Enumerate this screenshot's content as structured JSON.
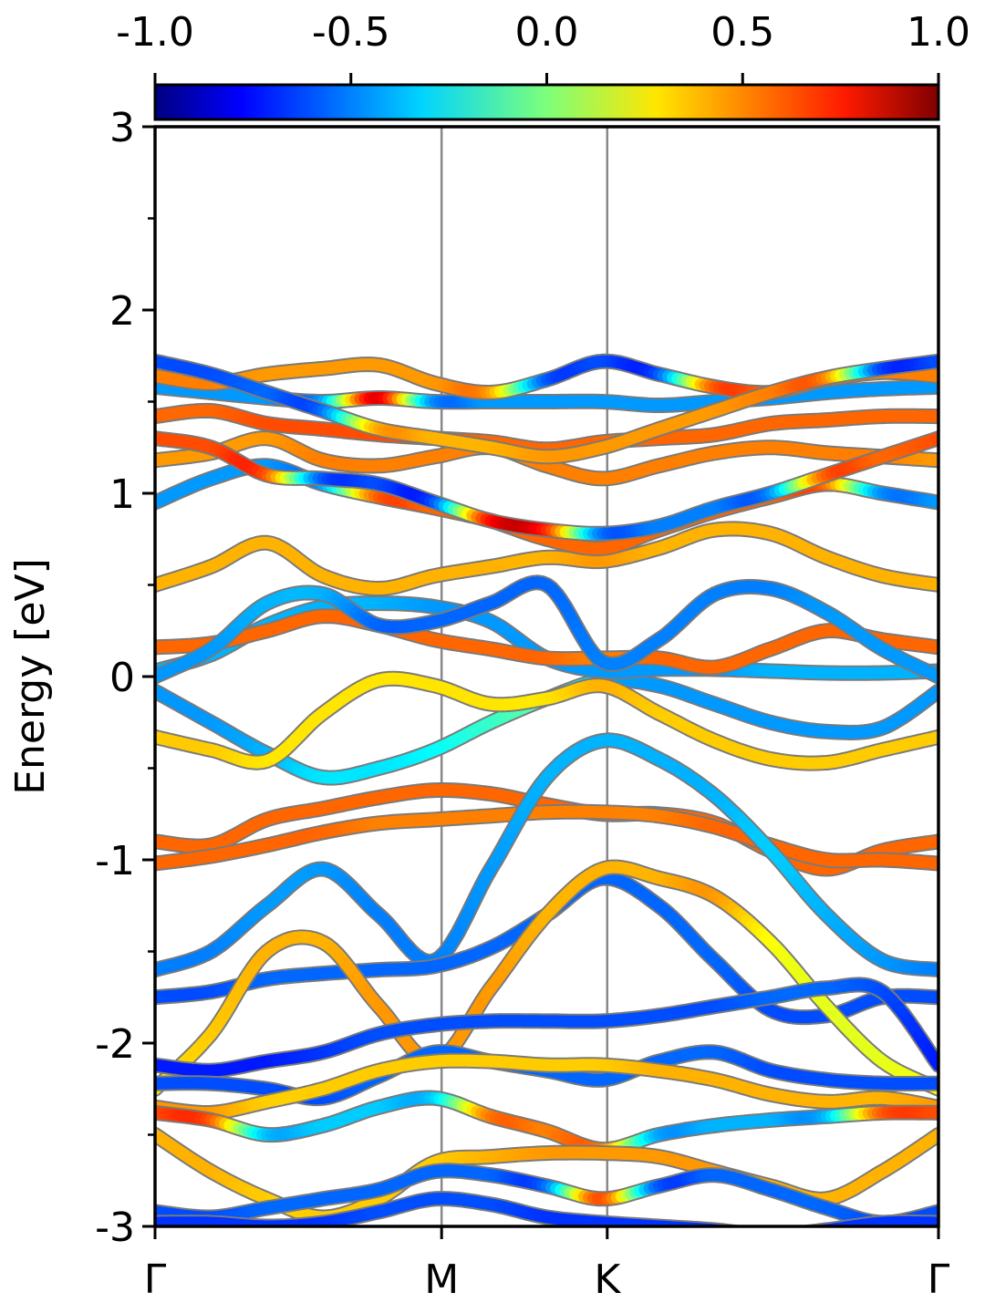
{
  "chart_data": {
    "type": "line",
    "title": "",
    "xlabel": "",
    "ylabel": "Energy [eV]",
    "ylim": [
      -3,
      3
    ],
    "y_ticks_major": [
      -3,
      -2,
      -1,
      0,
      1,
      2,
      3
    ],
    "y_tick_labels": [
      "-3",
      "-2",
      "-1",
      "0",
      "1",
      "2",
      "3"
    ],
    "y_ticks_minor": [
      -2.5,
      -1.5,
      -0.5,
      0.5,
      1.5,
      2.5
    ],
    "xlim": [
      0,
      4.73
    ],
    "k_points": [
      {
        "label": "Γ",
        "x": 0
      },
      {
        "label": "M",
        "x": 1.73
      },
      {
        "label": "K",
        "x": 2.73
      },
      {
        "label": "Γ",
        "x": 4.73
      }
    ],
    "colorbar": {
      "range": [
        -1.0,
        1.0
      ],
      "ticks": [
        -1.0,
        -0.5,
        0.0,
        0.5,
        1.0
      ],
      "tick_labels": [
        "-1.0",
        "-0.5",
        "0.0",
        "0.5",
        "1.0"
      ],
      "colormap": "jet"
    },
    "grid": false,
    "series": [
      {
        "values": [
          -0.08,
          -0.25,
          -0.42,
          -0.55,
          -0.5,
          -0.4,
          -0.25,
          -0.12,
          -0.02,
          -0.05,
          -0.15,
          -0.25,
          -0.3,
          -0.28,
          -0.08
        ],
        "colors": [
          -0.45,
          -0.45,
          -0.4,
          -0.3,
          -0.3,
          -0.25,
          -0.15,
          -0.1,
          -0.4,
          -0.45,
          -0.45,
          -0.45,
          -0.45,
          -0.45,
          -0.45
        ]
      },
      {
        "values": [
          -0.33,
          -0.4,
          -0.46,
          -0.2,
          -0.02,
          -0.05,
          -0.15,
          -0.12,
          -0.05,
          -0.2,
          -0.35,
          -0.45,
          -0.47,
          -0.4,
          -0.33
        ],
        "colors": [
          0.35,
          0.35,
          0.3,
          0.3,
          0.3,
          0.3,
          0.3,
          0.3,
          0.4,
          0.35,
          0.35,
          0.35,
          0.35,
          0.35,
          0.35
        ]
      },
      {
        "values": [
          0.03,
          0.12,
          0.28,
          0.38,
          0.4,
          0.38,
          0.3,
          0.1,
          0.03,
          0.04,
          0.04,
          0.03,
          0.02,
          0.02,
          0.03
        ],
        "colors": [
          -0.4,
          -0.4,
          -0.4,
          -0.4,
          -0.4,
          -0.45,
          -0.45,
          -0.45,
          -0.45,
          -0.45,
          -0.45,
          -0.4,
          -0.4,
          -0.4,
          -0.4
        ]
      },
      {
        "values": [
          0.16,
          0.18,
          0.25,
          0.33,
          0.28,
          0.2,
          0.15,
          0.1,
          0.1,
          0.1,
          0.05,
          0.15,
          0.25,
          0.2,
          0.16
        ],
        "colors": [
          0.55,
          0.55,
          0.55,
          0.55,
          0.55,
          0.55,
          0.55,
          0.55,
          0.5,
          0.55,
          0.55,
          0.55,
          0.55,
          0.55,
          0.55
        ]
      },
      {
        "values": [
          0.0,
          0.15,
          0.4,
          0.45,
          0.28,
          0.3,
          0.4,
          0.5,
          0.08,
          0.2,
          0.45,
          0.48,
          0.35,
          0.15,
          0.0
        ],
        "colors": [
          -0.45,
          -0.45,
          -0.4,
          -0.4,
          -0.55,
          -0.55,
          -0.55,
          -0.55,
          -0.5,
          -0.5,
          -0.5,
          -0.5,
          -0.45,
          -0.45,
          -0.45
        ]
      },
      {
        "values": [
          0.5,
          0.6,
          0.73,
          0.55,
          0.48,
          0.55,
          0.6,
          0.65,
          0.63,
          0.7,
          0.8,
          0.78,
          0.65,
          0.55,
          0.5
        ],
        "colors": [
          0.4,
          0.4,
          0.4,
          0.4,
          0.4,
          0.4,
          0.4,
          0.4,
          0.45,
          0.4,
          0.4,
          0.4,
          0.4,
          0.4,
          0.4
        ]
      },
      {
        "values": [
          0.95,
          1.08,
          1.15,
          1.05,
          0.98,
          0.92,
          0.85,
          0.75,
          0.7,
          0.8,
          0.9,
          0.98,
          1.05,
          1.0,
          0.95
        ],
        "colors": [
          -0.45,
          -0.45,
          -0.45,
          -0.45,
          0.55,
          0.55,
          0.55,
          0.55,
          0.55,
          0.55,
          0.55,
          0.55,
          0.55,
          -0.45,
          -0.45
        ]
      },
      {
        "values": [
          1.18,
          1.22,
          1.3,
          1.18,
          1.15,
          1.2,
          1.25,
          1.15,
          1.08,
          1.15,
          1.22,
          1.25,
          1.22,
          1.2,
          1.18
        ],
        "colors": [
          0.45,
          0.45,
          0.45,
          0.5,
          0.5,
          0.5,
          0.5,
          0.5,
          0.5,
          0.5,
          0.5,
          0.5,
          0.5,
          0.5,
          0.45
        ]
      },
      {
        "values": [
          1.3,
          1.25,
          1.1,
          1.08,
          1.05,
          0.95,
          0.85,
          0.8,
          0.78,
          0.82,
          0.92,
          1.0,
          1.1,
          1.2,
          1.3
        ],
        "colors": [
          0.6,
          0.6,
          0.6,
          -0.55,
          -0.6,
          -0.6,
          0.7,
          0.7,
          -0.5,
          -0.5,
          -0.5,
          -0.5,
          0.55,
          0.55,
          0.6
        ]
      },
      {
        "values": [
          1.42,
          1.45,
          1.38,
          1.35,
          1.32,
          1.3,
          1.28,
          1.24,
          1.28,
          1.3,
          1.32,
          1.38,
          1.4,
          1.42,
          1.42
        ],
        "colors": [
          0.55,
          0.55,
          0.6,
          0.6,
          0.6,
          0.6,
          0.55,
          0.55,
          0.55,
          0.55,
          0.55,
          0.55,
          0.55,
          0.55,
          0.55
        ]
      },
      {
        "values": [
          1.58,
          1.55,
          1.52,
          1.5,
          1.52,
          1.5,
          1.5,
          1.5,
          1.5,
          1.48,
          1.5,
          1.52,
          1.55,
          1.57,
          1.58
        ],
        "colors": [
          -0.45,
          -0.45,
          -0.45,
          -0.45,
          0.8,
          -0.45,
          -0.45,
          -0.45,
          -0.45,
          -0.45,
          -0.45,
          -0.45,
          -0.45,
          -0.45,
          -0.45
        ]
      },
      {
        "values": [
          1.64,
          1.6,
          1.65,
          1.68,
          1.7,
          1.6,
          1.55,
          1.62,
          1.72,
          1.65,
          1.58,
          1.55,
          1.62,
          1.66,
          1.64
        ],
        "colors": [
          0.5,
          0.5,
          0.45,
          0.45,
          0.45,
          0.45,
          0.45,
          -0.55,
          -0.6,
          -0.6,
          0.55,
          0.55,
          0.5,
          0.5,
          0.5
        ]
      },
      {
        "values": [
          1.72,
          1.65,
          1.55,
          1.45,
          1.35,
          1.3,
          1.25,
          1.2,
          1.25,
          1.35,
          1.45,
          1.55,
          1.63,
          1.68,
          1.72
        ],
        "colors": [
          -0.6,
          -0.6,
          -0.55,
          -0.55,
          0.4,
          0.4,
          0.4,
          0.45,
          0.45,
          0.45,
          0.45,
          0.5,
          0.5,
          -0.6,
          -0.6
        ]
      },
      {
        "values": [
          -0.9,
          -0.92,
          -0.78,
          -0.72,
          -0.66,
          -0.62,
          -0.64,
          -0.7,
          -0.75,
          -0.75,
          -0.8,
          -0.95,
          -1.05,
          -0.95,
          -0.9
        ],
        "colors": [
          0.55,
          0.55,
          0.55,
          0.55,
          0.55,
          0.55,
          0.55,
          0.55,
          0.55,
          0.55,
          0.55,
          0.55,
          0.55,
          0.55,
          0.55
        ]
      },
      {
        "values": [
          -1.02,
          -0.98,
          -0.92,
          -0.85,
          -0.8,
          -0.78,
          -0.76,
          -0.74,
          -0.74,
          -0.76,
          -0.82,
          -0.92,
          -1.0,
          -1.0,
          -1.02
        ],
        "colors": [
          0.55,
          0.55,
          0.55,
          0.55,
          0.5,
          0.5,
          0.5,
          0.5,
          0.5,
          0.5,
          0.55,
          0.55,
          0.55,
          0.55,
          0.55
        ]
      },
      {
        "values": [
          -1.6,
          -1.5,
          -1.25,
          -1.05,
          -1.3,
          -1.55,
          -1.05,
          -0.55,
          -0.35,
          -0.45,
          -0.65,
          -0.95,
          -1.3,
          -1.55,
          -1.6
        ],
        "colors": [
          -0.5,
          -0.5,
          -0.45,
          -0.45,
          -0.5,
          -0.5,
          -0.45,
          -0.4,
          -0.4,
          -0.4,
          -0.4,
          -0.35,
          -0.4,
          -0.45,
          -0.5
        ]
      },
      {
        "values": [
          -1.75,
          -1.72,
          -1.65,
          -1.62,
          -1.6,
          -1.58,
          -1.48,
          -1.3,
          -1.1,
          -1.25,
          -1.55,
          -1.82,
          -1.85,
          -1.75,
          -1.75
        ],
        "colors": [
          -0.6,
          -0.6,
          -0.55,
          -0.55,
          -0.55,
          -0.55,
          -0.55,
          -0.55,
          -0.55,
          -0.55,
          -0.55,
          -0.6,
          -0.6,
          -0.6,
          -0.6
        ]
      },
      {
        "values": [
          -2.25,
          -1.95,
          -1.5,
          -1.45,
          -1.8,
          -2.1,
          -1.7,
          -1.3,
          -1.05,
          -1.1,
          -1.2,
          -1.45,
          -1.8,
          -2.1,
          -2.25
        ],
        "colors": [
          0.3,
          0.35,
          0.4,
          0.4,
          0.45,
          0.45,
          0.45,
          0.4,
          0.4,
          0.4,
          0.45,
          0.25,
          0.2,
          0.2,
          0.25
        ]
      },
      {
        "values": [
          -2.12,
          -2.15,
          -2.1,
          -2.05,
          -1.95,
          -1.9,
          -1.88,
          -1.88,
          -1.88,
          -1.85,
          -1.8,
          -1.75,
          -1.7,
          -1.72,
          -2.12
        ],
        "colors": [
          -0.7,
          -0.7,
          -0.7,
          -0.65,
          -0.6,
          -0.6,
          -0.6,
          -0.6,
          -0.6,
          -0.6,
          -0.6,
          -0.55,
          -0.55,
          -0.6,
          -0.7
        ]
      },
      {
        "values": [
          -2.22,
          -2.22,
          -2.25,
          -2.3,
          -2.18,
          -2.05,
          -2.1,
          -2.15,
          -2.2,
          -2.1,
          -2.05,
          -2.15,
          -2.2,
          -2.22,
          -2.22
        ],
        "colors": [
          -0.6,
          -0.6,
          -0.6,
          -0.6,
          -0.55,
          -0.55,
          -0.55,
          -0.55,
          -0.55,
          -0.55,
          -0.55,
          -0.6,
          -0.6,
          -0.6,
          -0.6
        ]
      },
      {
        "values": [
          -2.35,
          -2.38,
          -2.32,
          -2.25,
          -2.15,
          -2.1,
          -2.1,
          -2.12,
          -2.12,
          -2.15,
          -2.2,
          -2.28,
          -2.32,
          -2.3,
          -2.35
        ],
        "colors": [
          0.45,
          0.45,
          0.35,
          0.35,
          0.35,
          0.35,
          0.35,
          0.35,
          0.35,
          0.4,
          0.4,
          0.4,
          0.4,
          0.4,
          0.45
        ]
      },
      {
        "values": [
          -2.38,
          -2.42,
          -2.5,
          -2.45,
          -2.35,
          -2.3,
          -2.4,
          -2.48,
          -2.58,
          -2.5,
          -2.45,
          -2.42,
          -2.4,
          -2.38,
          -2.38
        ],
        "colors": [
          0.6,
          0.6,
          -0.35,
          -0.35,
          -0.35,
          -0.35,
          0.5,
          0.5,
          0.5,
          -0.4,
          -0.4,
          -0.4,
          -0.4,
          0.55,
          0.6
        ]
      },
      {
        "values": [
          -2.5,
          -2.7,
          -2.85,
          -2.95,
          -2.85,
          -2.65,
          -2.62,
          -2.6,
          -2.6,
          -2.62,
          -2.7,
          -2.78,
          -2.85,
          -2.7,
          -2.5
        ],
        "colors": [
          0.4,
          0.4,
          0.35,
          0.35,
          0.35,
          0.35,
          0.4,
          0.45,
          0.45,
          0.45,
          0.45,
          0.4,
          0.4,
          0.4,
          0.4
        ]
      },
      {
        "values": [
          -2.92,
          -2.95,
          -2.9,
          -2.85,
          -2.8,
          -2.7,
          -2.72,
          -2.78,
          -2.85,
          -2.78,
          -2.72,
          -2.8,
          -2.9,
          -2.98,
          -2.92
        ],
        "colors": [
          -0.6,
          -0.6,
          -0.55,
          -0.55,
          -0.55,
          -0.55,
          -0.55,
          -0.55,
          0.6,
          -0.55,
          -0.55,
          -0.55,
          -0.55,
          -0.6,
          -0.6
        ]
      },
      {
        "values": [
          -2.98,
          -2.98,
          -3.0,
          -2.98,
          -2.92,
          -2.85,
          -2.88,
          -2.95,
          -2.98,
          -3.0,
          -3.02,
          -3.05,
          -3.02,
          -2.98,
          -2.98
        ],
        "colors": [
          -0.65,
          -0.65,
          -0.65,
          -0.65,
          -0.6,
          -0.6,
          -0.6,
          -0.65,
          -0.65,
          -0.65,
          -0.65,
          -0.65,
          -0.65,
          -0.65,
          -0.65
        ]
      }
    ]
  }
}
